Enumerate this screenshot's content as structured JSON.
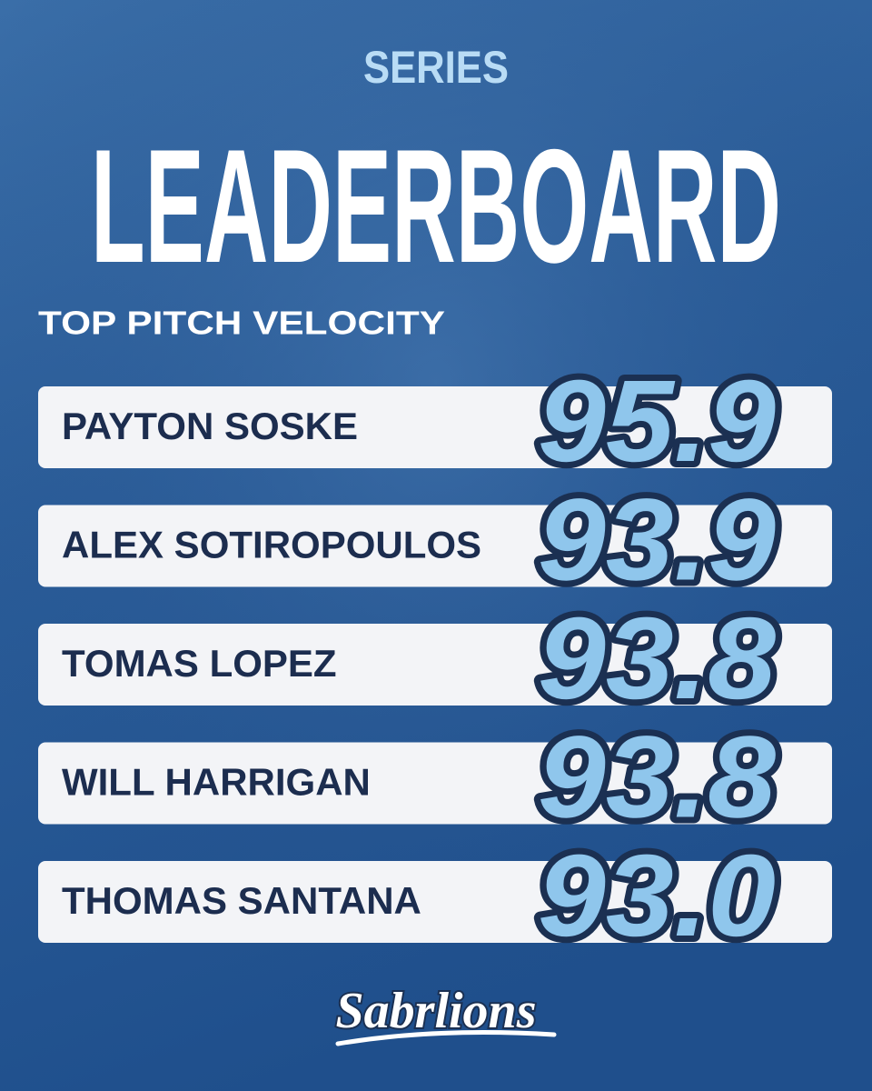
{
  "header": {
    "kicker": "SERIES",
    "title": "LEADERBOARD"
  },
  "section": {
    "title": "TOP PITCH VELOCITY"
  },
  "rows": [
    {
      "name": "PAYTON SOSKE",
      "value": "95.9"
    },
    {
      "name": "ALEX SOTIROPOULOS",
      "value": "93.9"
    },
    {
      "name": "TOMAS LOPEZ",
      "value": "93.8"
    },
    {
      "name": "WILL HARRIGAN",
      "value": "93.8"
    },
    {
      "name": "THOMAS SANTANA",
      "value": "93.0"
    }
  ],
  "footer": {
    "logo": "Sabrlions"
  }
}
